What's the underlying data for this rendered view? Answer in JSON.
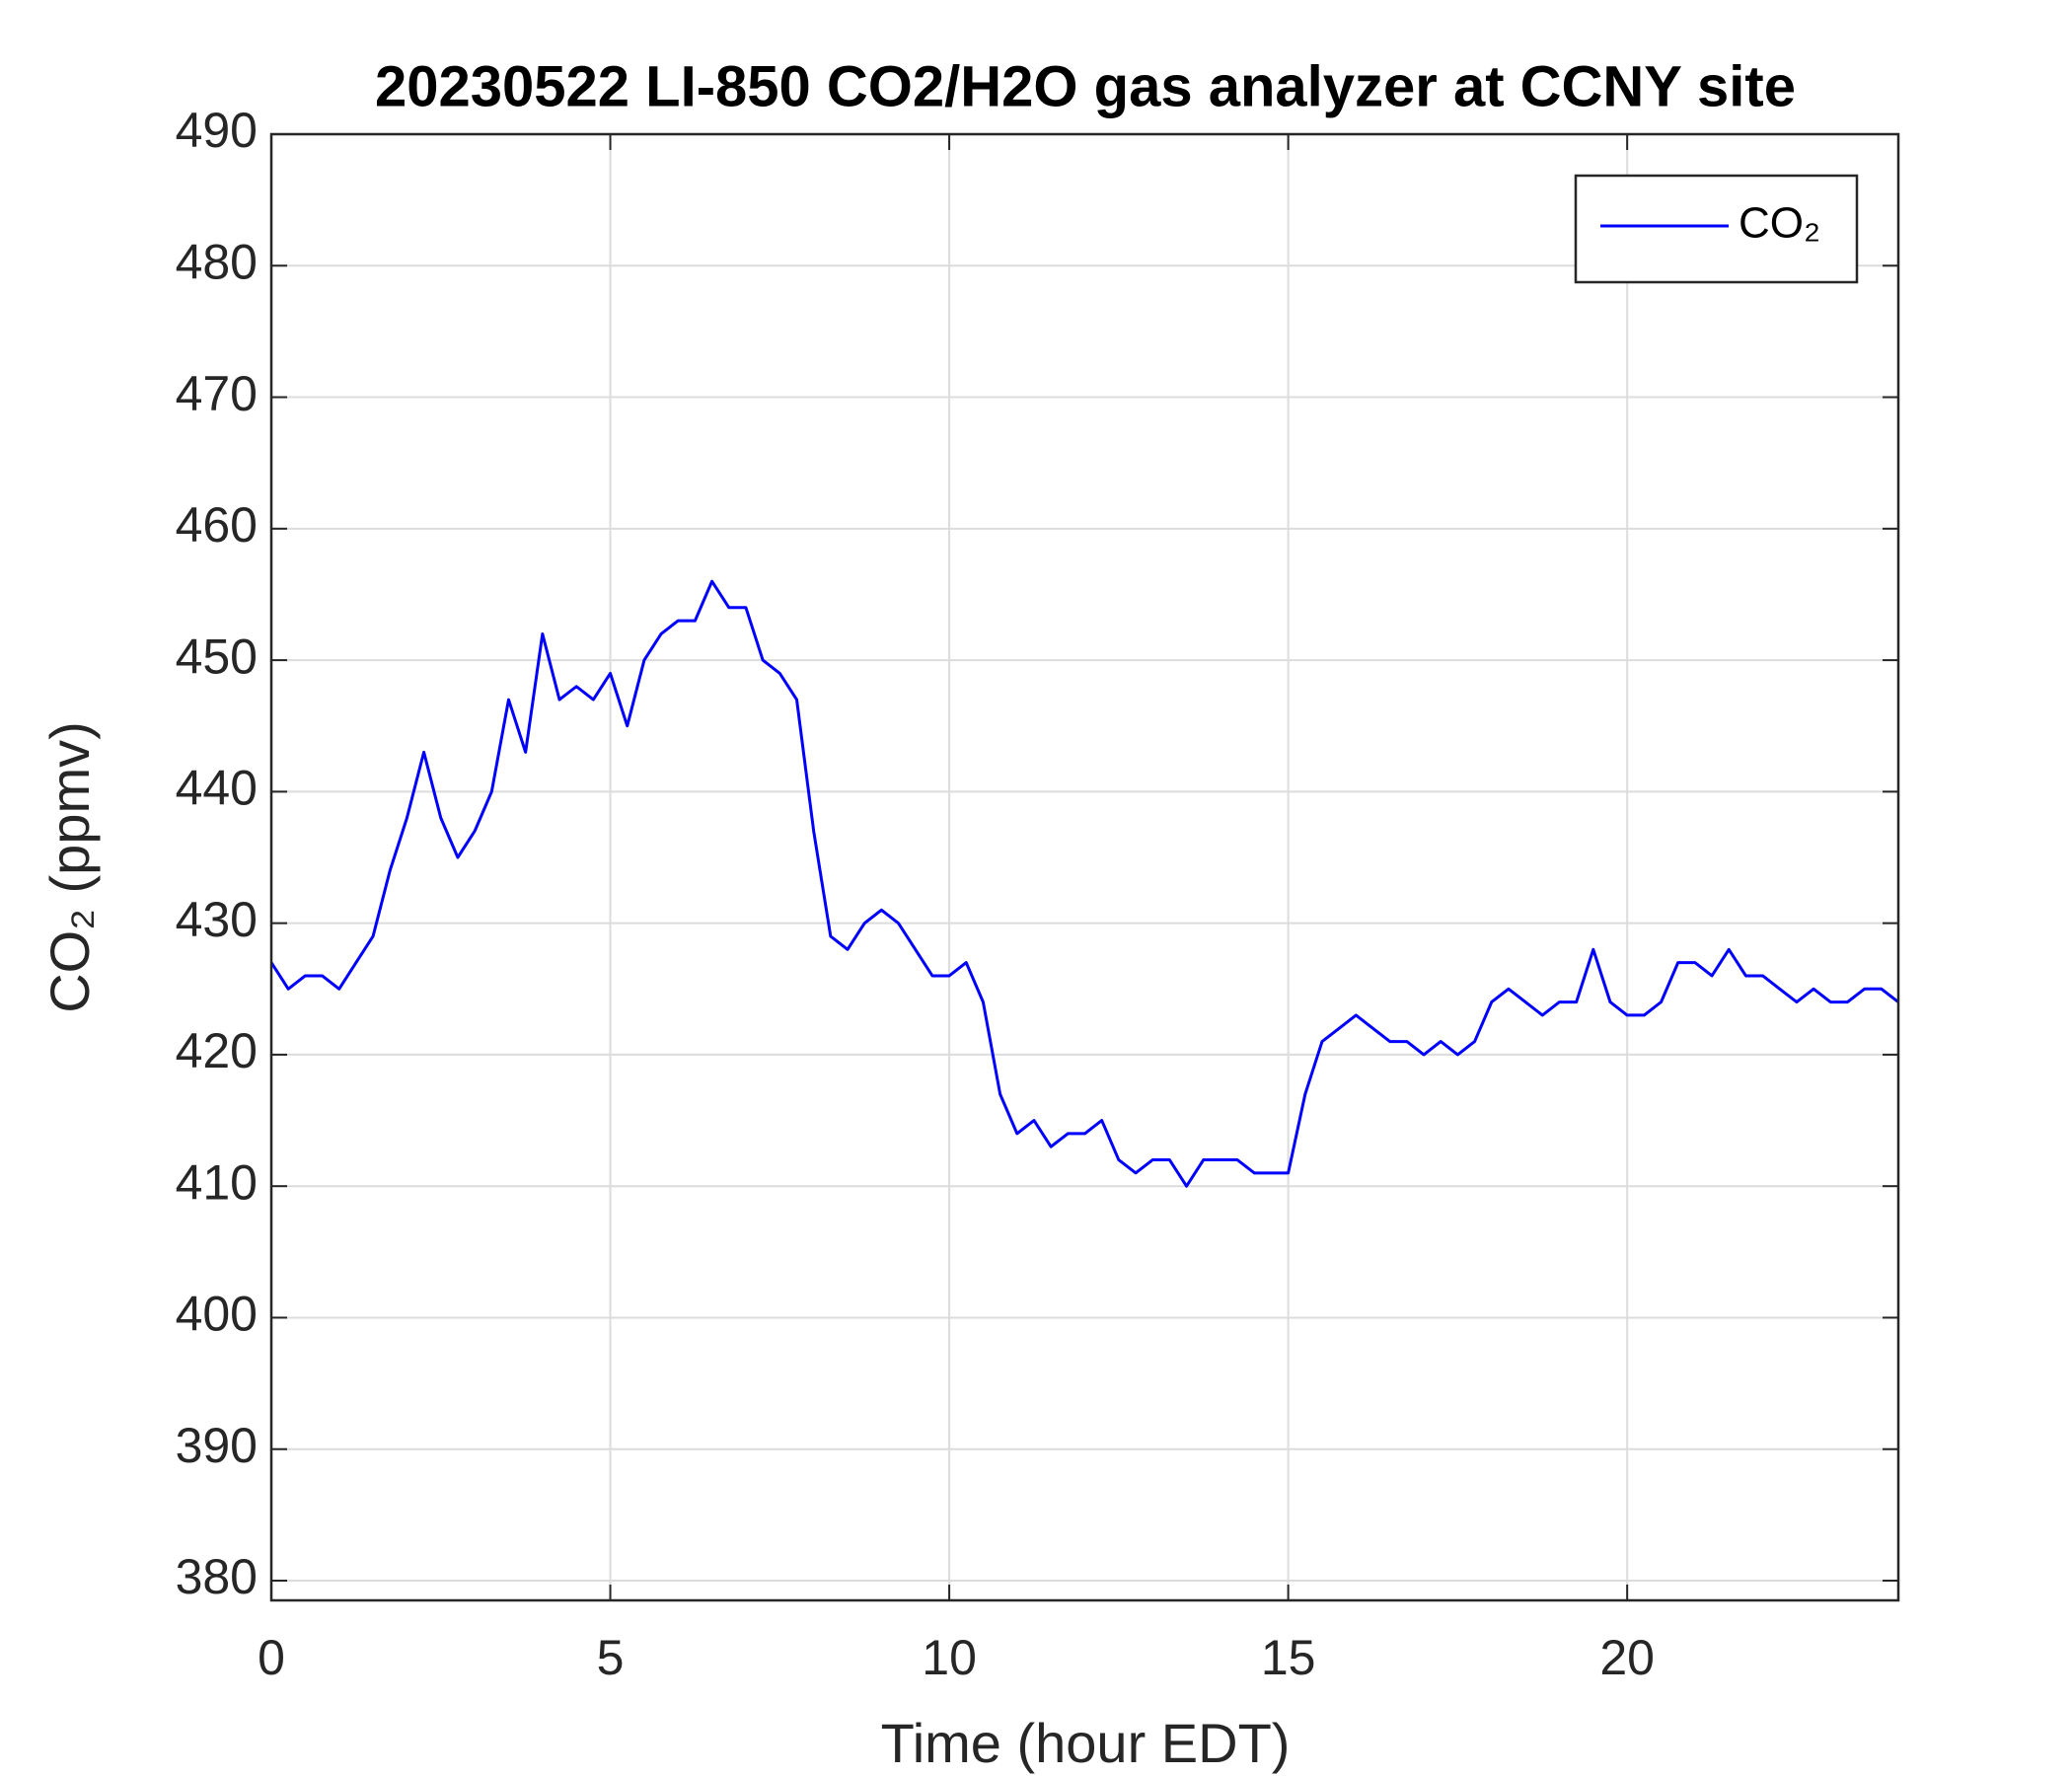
{
  "chart_data": {
    "type": "line",
    "title": "20230522 LI-850 CO2/H2O gas analyzer at CCNY site",
    "xlabel": "Time (hour EDT)",
    "ylabel": "CO₂ (ppmv)",
    "x": [
      0,
      0.25,
      0.5,
      0.75,
      1,
      1.25,
      1.5,
      1.75,
      2,
      2.25,
      2.5,
      2.75,
      3,
      3.25,
      3.5,
      3.75,
      4,
      4.25,
      4.5,
      4.75,
      5,
      5.25,
      5.5,
      5.75,
      6,
      6.25,
      6.5,
      6.75,
      7,
      7.25,
      7.5,
      7.75,
      8,
      8.25,
      8.5,
      8.75,
      9,
      9.25,
      9.5,
      9.75,
      10,
      10.25,
      10.5,
      10.75,
      11,
      11.25,
      11.5,
      11.75,
      12,
      12.25,
      12.5,
      12.75,
      13,
      13.25,
      13.5,
      13.75,
      14,
      14.25,
      14.5,
      14.75,
      15,
      15.25,
      15.5,
      15.75,
      16,
      16.25,
      16.5,
      16.75,
      17,
      17.25,
      17.5,
      17.75,
      18,
      18.25,
      18.5,
      18.75,
      19,
      19.25,
      19.5,
      19.75,
      20,
      20.25,
      20.5,
      20.75,
      21,
      21.25,
      21.5,
      21.75,
      22,
      22.25,
      22.5,
      22.75,
      23,
      23.25,
      23.5,
      23.75,
      24
    ],
    "series": [
      {
        "name": "CO₂",
        "color": "#0000ff",
        "values": [
          427,
          425,
          426,
          426,
          425,
          427,
          429,
          434,
          438,
          443,
          438,
          435,
          437,
          440,
          447,
          443,
          452,
          447,
          448,
          447,
          449,
          445,
          450,
          452,
          453,
          453,
          456,
          454,
          454,
          450,
          449,
          447,
          437,
          429,
          428,
          430,
          431,
          430,
          428,
          426,
          426,
          427,
          424,
          417,
          414,
          415,
          413,
          414,
          414,
          415,
          412,
          411,
          412,
          412,
          410,
          412,
          412,
          412,
          411,
          411,
          411,
          417,
          421,
          422,
          423,
          422,
          421,
          421,
          420,
          421,
          420,
          421,
          424,
          425,
          424,
          423,
          424,
          424,
          428,
          424,
          423,
          423,
          424,
          427,
          427,
          426,
          428,
          426,
          426,
          425,
          424,
          425,
          424,
          424,
          425,
          425,
          424
        ]
      }
    ],
    "xlim": [
      0,
      24
    ],
    "ylim": [
      378.5,
      490
    ],
    "xticks": [
      0,
      5,
      10,
      15,
      20
    ],
    "yticks": [
      380,
      390,
      400,
      410,
      420,
      430,
      440,
      450,
      460,
      470,
      480,
      490
    ],
    "grid": true,
    "legend": "upper right"
  }
}
